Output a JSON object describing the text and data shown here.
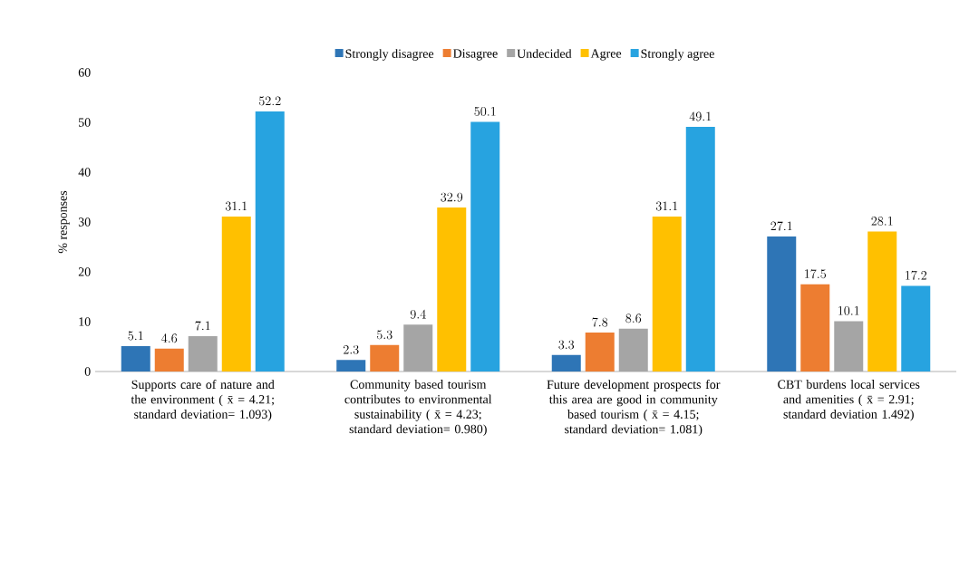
{
  "chart_data": {
    "type": "bar",
    "ylabel": "% responses",
    "categories": [
      "Supports care of nature and the environment ( x̄ = 4.21; standard deviation= 1.093)",
      "Community based tourism contributes to environmental sustainability ( x̄ = 4.23; standard deviation= 0.980)",
      "Future development prospects for this area are good in community based tourism ( x̄ = 4.15; standard deviation= 1.081)",
      "CBT burdens local services and amenities ( x̄ = 2.91; standard deviation 1.492)"
    ],
    "series": [
      {
        "name": "Strongly disagree",
        "color": "#2e75b6",
        "values": [
          5.1,
          2.3,
          3.3,
          27.1
        ]
      },
      {
        "name": "Disagree",
        "color": "#ed7d31",
        "values": [
          4.6,
          5.3,
          7.8,
          17.5
        ]
      },
      {
        "name": "Undecided",
        "color": "#a5a5a5",
        "values": [
          7.1,
          9.4,
          8.6,
          10.1
        ]
      },
      {
        "name": "Agree",
        "color": "#ffc000",
        "values": [
          31.1,
          32.9,
          31.1,
          28.1
        ]
      },
      {
        "name": "Strongly agree",
        "color": "#27a3e0",
        "values": [
          52.2,
          50.1,
          49.1,
          17.2
        ]
      }
    ],
    "ylim": [
      0,
      60
    ],
    "yticks": [
      0,
      10,
      20,
      30,
      40,
      50,
      60
    ],
    "grid": false,
    "legend": "top",
    "data_labels": true
  }
}
